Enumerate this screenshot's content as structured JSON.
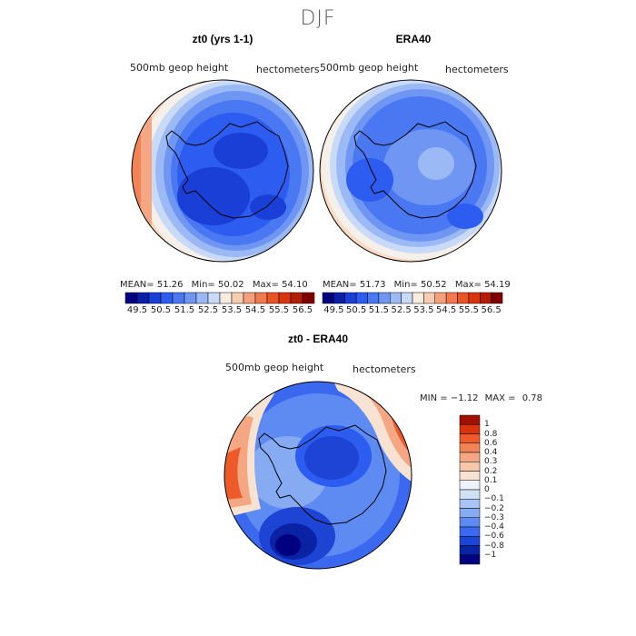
{
  "figure": {
    "title": "DJF"
  },
  "panels": [
    {
      "title": "zt0 (yrs 1-1)",
      "variable": "500mb geop height",
      "units": "hectometers",
      "mean_label": "MEAN=",
      "mean": "51.26",
      "min_label": "Min=",
      "min": "50.02",
      "max_label": "Max=",
      "max": "54.10"
    },
    {
      "title": "ERA40",
      "variable": "500mb geop height",
      "units": "hectometers",
      "mean_label": "MEAN=",
      "mean": "51.73",
      "min_label": "Min=",
      "min": "50.52",
      "max_label": "Max=",
      "max": "54.19"
    },
    {
      "title": "zt0 - ERA40",
      "variable": "500mb geop height",
      "units": "hectometers",
      "min_label": "MIN =",
      "min": "−1.12",
      "max_label": "MAX =",
      "max": "0.78"
    }
  ],
  "abs_colorbar": {
    "ticks": [
      "49.5",
      "50.5",
      "51.5",
      "52.5",
      "53.5",
      "54.5",
      "55.5",
      "56.5"
    ],
    "colors": [
      "#000080",
      "#0a1fa8",
      "#1a3fd6",
      "#2d5cf0",
      "#4a78f2",
      "#6f96f3",
      "#9bb9f5",
      "#c8daf8",
      "#f7ecdf",
      "#f7cdb1",
      "#f5a07a",
      "#f27a4e",
      "#ea5425",
      "#d8350e",
      "#b31c05",
      "#800000"
    ]
  },
  "diff_colorbar": {
    "ticks": [
      "1",
      "0.8",
      "0.6",
      "0.4",
      "0.3",
      "0.2",
      "0.1",
      "0",
      "−0.1",
      "−0.2",
      "−0.3",
      "−0.4",
      "−0.6",
      "−0.8",
      "−1"
    ],
    "colors": [
      "#a01000",
      "#d8330c",
      "#ef5a2a",
      "#f28356",
      "#f5a783",
      "#f7c7aa",
      "#f8e3d2",
      "#eef3fb",
      "#cfe0f7",
      "#a9c5f5",
      "#86abf3",
      "#5e8bf2",
      "#3a68ee",
      "#1d44d4",
      "#0a22a4",
      "#000080"
    ]
  },
  "colors": {
    "map_base": "#2f5ef0",
    "ocean_edge": "#ffffff",
    "coastline": "#000000"
  }
}
